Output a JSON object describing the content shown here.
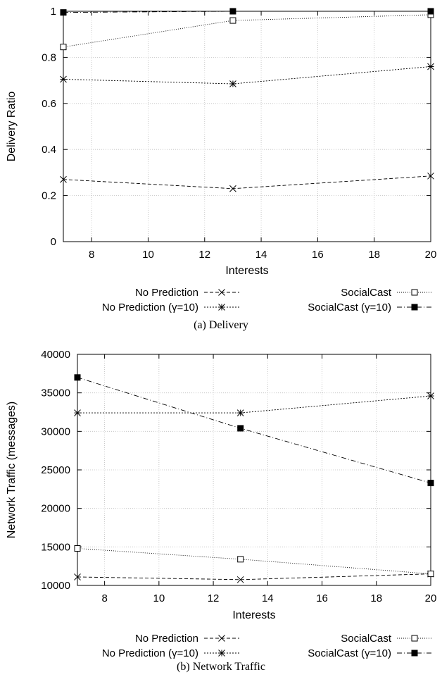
{
  "chart_data": [
    {
      "type": "line",
      "caption": "(a)  Delivery",
      "xlabel": "Interests",
      "ylabel": "Delivery Ratio",
      "xlim": [
        7,
        20
      ],
      "ylim": [
        0,
        1
      ],
      "xticks": [
        8,
        10,
        12,
        14,
        16,
        18,
        20
      ],
      "yticks": [
        0,
        0.2,
        0.4,
        0.6,
        0.8,
        1
      ],
      "ytick_labels": [
        "0",
        "0.2",
        "0.4",
        "0.6",
        "0.8",
        "1"
      ],
      "grid": true,
      "legend_position": "bottom",
      "x": [
        7,
        13,
        20
      ],
      "series": [
        {
          "name": "No Prediction",
          "marker": "cross",
          "line": "dashed",
          "values": [
            0.27,
            0.23,
            0.285
          ]
        },
        {
          "name": "No Prediction (γ=10)",
          "marker": "star",
          "line": "dotted",
          "values": [
            0.705,
            0.685,
            0.76
          ]
        },
        {
          "name": "SocialCast",
          "marker": "open-square",
          "line": "fine-dotted",
          "values": [
            0.845,
            0.96,
            0.985
          ]
        },
        {
          "name": "SocialCast (γ=10)",
          "marker": "filled-square",
          "line": "dash-dot",
          "values": [
            0.995,
            1.0,
            1.0
          ]
        }
      ]
    },
    {
      "type": "line",
      "caption": "(b)  Network Traffic",
      "xlabel": "Interests",
      "ylabel": "Network Traffic (messages)",
      "xlim": [
        7,
        20
      ],
      "ylim": [
        10000,
        40000
      ],
      "xticks": [
        8,
        10,
        12,
        14,
        16,
        18,
        20
      ],
      "yticks": [
        10000,
        15000,
        20000,
        25000,
        30000,
        35000,
        40000
      ],
      "ytick_labels": [
        "10000",
        "15000",
        "20000",
        "25000",
        "30000",
        "35000",
        "40000"
      ],
      "grid": true,
      "legend_position": "bottom",
      "x": [
        7,
        13,
        20
      ],
      "series": [
        {
          "name": "No Prediction",
          "marker": "cross",
          "line": "dashed",
          "values": [
            11100,
            10750,
            11500
          ]
        },
        {
          "name": "No Prediction (γ=10)",
          "marker": "star",
          "line": "dotted",
          "values": [
            32400,
            32400,
            34600
          ]
        },
        {
          "name": "SocialCast",
          "marker": "open-square",
          "line": "fine-dotted",
          "values": [
            14800,
            13400,
            11500
          ]
        },
        {
          "name": "SocialCast (γ=10)",
          "marker": "filled-square",
          "line": "dash-dot",
          "values": [
            37000,
            30400,
            23300
          ]
        }
      ]
    }
  ]
}
